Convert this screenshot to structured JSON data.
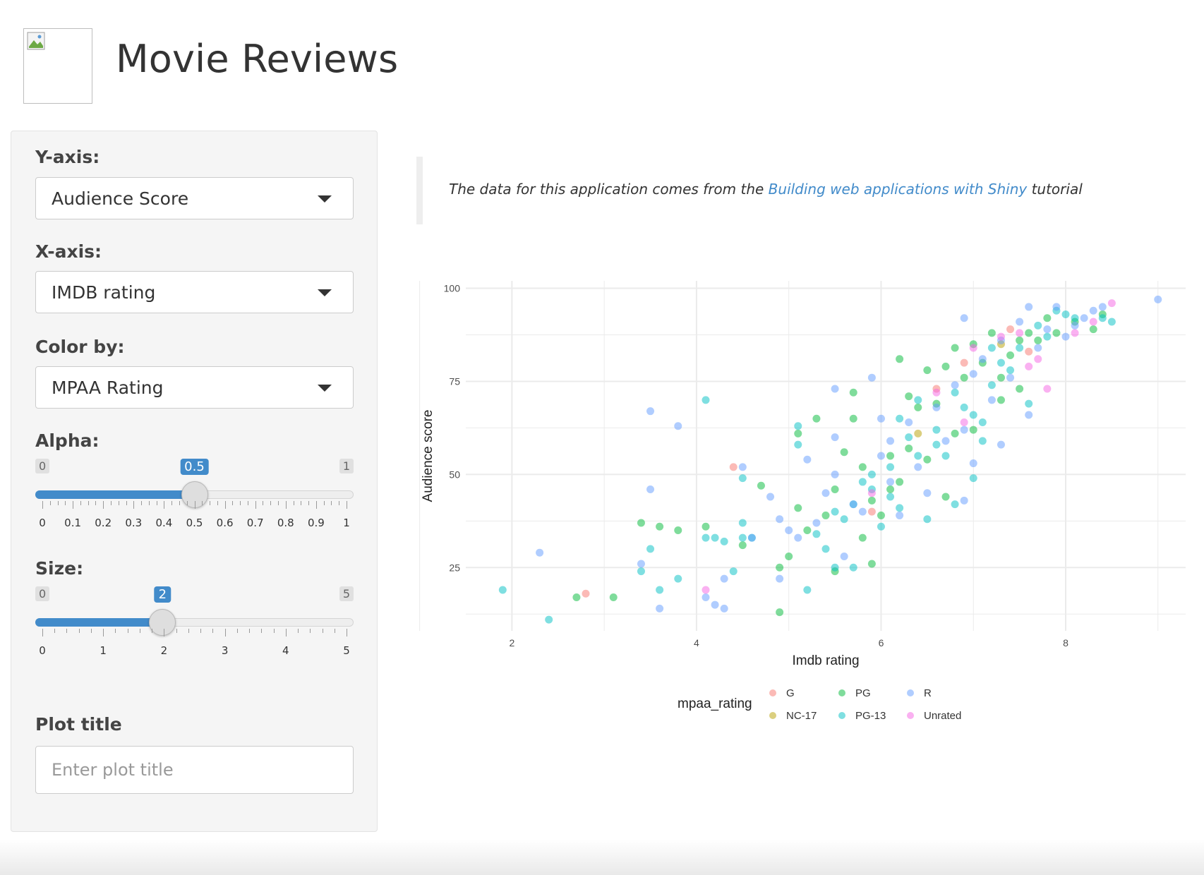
{
  "header": {
    "title": "Movie Reviews",
    "logo_icon": "broken-image-icon"
  },
  "sidebar": {
    "y_axis": {
      "label": "Y-axis:",
      "value": "Audience Score"
    },
    "x_axis": {
      "label": "X-axis:",
      "value": "IMDB rating"
    },
    "color_by": {
      "label": "Color by:",
      "value": "MPAA Rating"
    },
    "alpha": {
      "label": "Alpha:",
      "min": "0",
      "max": "1",
      "value": "0.5",
      "value_fraction": 0.5,
      "tick_labels": [
        "0",
        "0.1",
        "0.2",
        "0.3",
        "0.4",
        "0.5",
        "0.6",
        "0.7",
        "0.8",
        "0.9",
        "1"
      ]
    },
    "size": {
      "label": "Size:",
      "min": "0",
      "max": "5",
      "value": "2",
      "value_fraction": 0.4,
      "tick_labels": [
        "0",
        "1",
        "2",
        "3",
        "4",
        "5"
      ]
    },
    "plot_title": {
      "label": "Plot title",
      "placeholder": "Enter plot title",
      "value": ""
    }
  },
  "note": {
    "prefix": "The data for this application comes from the ",
    "link_text": "Building web applications with Shiny",
    "suffix": " tutorial"
  },
  "colors": {
    "accent": "#428bca",
    "link": "#428bca"
  },
  "chart_data": {
    "type": "scatter",
    "xlabel": "Imdb rating",
    "ylabel": "Audience score",
    "xlim": [
      1.5,
      9.3
    ],
    "ylim": [
      8,
      102
    ],
    "xticks": [
      2,
      4,
      6,
      8
    ],
    "yticks": [
      25,
      50,
      75,
      100
    ],
    "grid": true,
    "legend_title": "mpaa_rating",
    "legend_position": "bottom",
    "alpha": 0.5,
    "series": [
      {
        "name": "G",
        "color": "#F8766D",
        "points": [
          [
            2.8,
            18
          ],
          [
            4.4,
            52
          ],
          [
            5.9,
            40
          ],
          [
            6.6,
            73
          ],
          [
            7.4,
            89
          ],
          [
            7.6,
            83
          ],
          [
            6.9,
            80
          ]
        ]
      },
      {
        "name": "NC-17",
        "color": "#B79F00",
        "points": [
          [
            6.4,
            61
          ],
          [
            7.3,
            85
          ]
        ]
      },
      {
        "name": "PG",
        "color": "#00BA38",
        "points": [
          [
            2.7,
            17
          ],
          [
            3.1,
            17
          ],
          [
            3.4,
            37
          ],
          [
            3.6,
            36
          ],
          [
            3.8,
            35
          ],
          [
            4.1,
            36
          ],
          [
            4.5,
            31
          ],
          [
            4.7,
            47
          ],
          [
            4.9,
            25
          ],
          [
            4.9,
            13
          ],
          [
            5.0,
            28
          ],
          [
            5.1,
            61
          ],
          [
            5.2,
            35
          ],
          [
            5.1,
            41
          ],
          [
            5.3,
            65
          ],
          [
            5.4,
            39
          ],
          [
            5.5,
            24
          ],
          [
            5.6,
            56
          ],
          [
            5.7,
            72
          ],
          [
            5.7,
            65
          ],
          [
            5.8,
            52
          ],
          [
            5.9,
            43
          ],
          [
            5.9,
            26
          ],
          [
            6.0,
            39
          ],
          [
            6.1,
            55
          ],
          [
            6.2,
            81
          ],
          [
            6.3,
            71
          ],
          [
            6.4,
            68
          ],
          [
            6.5,
            78
          ],
          [
            6.6,
            69
          ],
          [
            6.7,
            79
          ],
          [
            6.8,
            84
          ],
          [
            6.9,
            76
          ],
          [
            7.0,
            85
          ],
          [
            7.1,
            80
          ],
          [
            7.2,
            88
          ],
          [
            7.3,
            76
          ],
          [
            7.4,
            82
          ],
          [
            7.5,
            86
          ],
          [
            7.6,
            88
          ],
          [
            7.7,
            86
          ],
          [
            7.8,
            92
          ],
          [
            7.9,
            88
          ],
          [
            8.1,
            91
          ],
          [
            8.3,
            89
          ],
          [
            8.4,
            93
          ],
          [
            6.2,
            48
          ],
          [
            6.5,
            54
          ],
          [
            6.8,
            61
          ],
          [
            7.0,
            62
          ],
          [
            5.8,
            33
          ],
          [
            6.3,
            57
          ],
          [
            7.5,
            73
          ],
          [
            6.1,
            46
          ],
          [
            6.7,
            44
          ],
          [
            5.5,
            46
          ],
          [
            7.3,
            70
          ]
        ]
      },
      {
        "name": "PG-13",
        "color": "#00BFC4",
        "points": [
          [
            1.9,
            19
          ],
          [
            2.4,
            11
          ],
          [
            3.4,
            24
          ],
          [
            3.5,
            30
          ],
          [
            3.6,
            19
          ],
          [
            3.8,
            22
          ],
          [
            4.1,
            70
          ],
          [
            4.1,
            33
          ],
          [
            4.2,
            33
          ],
          [
            4.3,
            32
          ],
          [
            4.4,
            24
          ],
          [
            4.5,
            49
          ],
          [
            4.5,
            37
          ],
          [
            4.5,
            33
          ],
          [
            4.6,
            33
          ],
          [
            5.1,
            63
          ],
          [
            5.1,
            58
          ],
          [
            5.2,
            19
          ],
          [
            5.3,
            34
          ],
          [
            5.4,
            30
          ],
          [
            5.5,
            40
          ],
          [
            5.5,
            25
          ],
          [
            5.6,
            38
          ],
          [
            5.7,
            25
          ],
          [
            5.7,
            42
          ],
          [
            5.8,
            48
          ],
          [
            5.9,
            50
          ],
          [
            6.0,
            36
          ],
          [
            6.1,
            44
          ],
          [
            6.1,
            52
          ],
          [
            6.2,
            65
          ],
          [
            6.3,
            60
          ],
          [
            6.4,
            55
          ],
          [
            6.5,
            38
          ],
          [
            6.6,
            62
          ],
          [
            6.7,
            55
          ],
          [
            6.8,
            42
          ],
          [
            6.8,
            72
          ],
          [
            6.9,
            68
          ],
          [
            7.0,
            66
          ],
          [
            7.0,
            49
          ],
          [
            7.1,
            59
          ],
          [
            7.1,
            64
          ],
          [
            7.2,
            74
          ],
          [
            7.3,
            80
          ],
          [
            7.4,
            78
          ],
          [
            7.5,
            84
          ],
          [
            7.6,
            69
          ],
          [
            7.7,
            90
          ],
          [
            7.8,
            87
          ],
          [
            7.9,
            94
          ],
          [
            8.0,
            93
          ],
          [
            8.1,
            92
          ],
          [
            8.4,
            92
          ],
          [
            8.5,
            91
          ],
          [
            6.4,
            70
          ],
          [
            6.6,
            58
          ],
          [
            7.2,
            84
          ],
          [
            5.9,
            46
          ],
          [
            6.2,
            41
          ]
        ]
      },
      {
        "name": "R",
        "color": "#619CFF",
        "points": [
          [
            2.3,
            29
          ],
          [
            3.4,
            26
          ],
          [
            3.5,
            67
          ],
          [
            3.5,
            46
          ],
          [
            3.6,
            14
          ],
          [
            3.8,
            63
          ],
          [
            4.1,
            17
          ],
          [
            4.2,
            15
          ],
          [
            4.3,
            14
          ],
          [
            4.3,
            22
          ],
          [
            4.5,
            52
          ],
          [
            4.6,
            33
          ],
          [
            4.8,
            44
          ],
          [
            4.9,
            38
          ],
          [
            4.9,
            22
          ],
          [
            5.0,
            35
          ],
          [
            5.1,
            33
          ],
          [
            5.2,
            54
          ],
          [
            5.3,
            37
          ],
          [
            5.4,
            45
          ],
          [
            5.5,
            73
          ],
          [
            5.5,
            60
          ],
          [
            5.6,
            28
          ],
          [
            5.7,
            42
          ],
          [
            5.8,
            40
          ],
          [
            5.9,
            76
          ],
          [
            6.0,
            65
          ],
          [
            6.0,
            55
          ],
          [
            6.1,
            48
          ],
          [
            6.2,
            39
          ],
          [
            6.3,
            64
          ],
          [
            6.4,
            52
          ],
          [
            6.5,
            45
          ],
          [
            6.6,
            68
          ],
          [
            6.7,
            59
          ],
          [
            6.8,
            74
          ],
          [
            6.9,
            62
          ],
          [
            7.0,
            77
          ],
          [
            7.0,
            53
          ],
          [
            7.1,
            81
          ],
          [
            7.2,
            70
          ],
          [
            7.3,
            86
          ],
          [
            7.4,
            76
          ],
          [
            7.5,
            91
          ],
          [
            7.6,
            95
          ],
          [
            7.7,
            84
          ],
          [
            7.8,
            89
          ],
          [
            7.9,
            95
          ],
          [
            8.0,
            87
          ],
          [
            8.1,
            90
          ],
          [
            8.2,
            92
          ],
          [
            8.3,
            94
          ],
          [
            8.4,
            95
          ],
          [
            9.0,
            97
          ],
          [
            6.9,
            92
          ],
          [
            7.6,
            66
          ],
          [
            5.5,
            50
          ],
          [
            6.1,
            59
          ],
          [
            6.9,
            43
          ],
          [
            7.3,
            58
          ]
        ]
      },
      {
        "name": "Unrated",
        "color": "#F564E3",
        "points": [
          [
            4.1,
            19
          ],
          [
            5.9,
            45
          ],
          [
            6.6,
            72
          ],
          [
            6.9,
            64
          ],
          [
            7.0,
            84
          ],
          [
            7.3,
            87
          ],
          [
            7.5,
            88
          ],
          [
            7.6,
            79
          ],
          [
            7.7,
            81
          ],
          [
            7.8,
            73
          ],
          [
            8.1,
            88
          ],
          [
            8.3,
            91
          ],
          [
            8.5,
            96
          ]
        ]
      }
    ]
  }
}
